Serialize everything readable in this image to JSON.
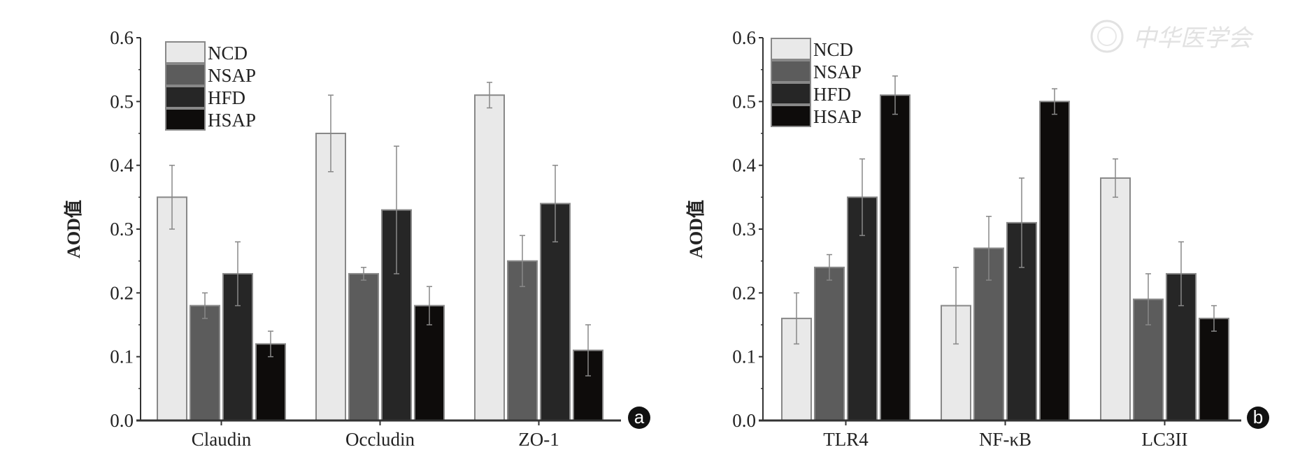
{
  "watermark": {
    "logo_text": "中华医学会"
  },
  "chart_data": [
    {
      "type": "bar",
      "panel_label": "a",
      "title": "",
      "xlabel": "",
      "ylabel": "AOD值",
      "ylim": [
        0,
        0.6
      ],
      "yticks": [
        "0.0",
        "0.1",
        "0.2",
        "0.3",
        "0.4",
        "0.5",
        "0.6"
      ],
      "grid": false,
      "legend_position": "top-left",
      "categories": [
        "Claudin",
        "Occludin",
        "ZO-1"
      ],
      "series": [
        {
          "name": "NCD",
          "color": "#e9e9e9",
          "values": [
            0.35,
            0.45,
            0.51
          ],
          "errors": [
            0.05,
            0.06,
            0.02
          ]
        },
        {
          "name": "NSAP",
          "color": "#5c5c5c",
          "values": [
            0.18,
            0.23,
            0.25
          ],
          "errors": [
            0.02,
            0.01,
            0.04
          ]
        },
        {
          "name": "HFD",
          "color": "#262626",
          "values": [
            0.23,
            0.33,
            0.34
          ],
          "errors": [
            0.05,
            0.1,
            0.06
          ]
        },
        {
          "name": "HSAP",
          "color": "#0e0c0b",
          "values": [
            0.12,
            0.18,
            0.11
          ],
          "errors": [
            0.02,
            0.03,
            0.04
          ]
        }
      ]
    },
    {
      "type": "bar",
      "panel_label": "b",
      "title": "",
      "xlabel": "",
      "ylabel": "AOD值",
      "ylim": [
        0,
        0.6
      ],
      "yticks": [
        "0.0",
        "0.1",
        "0.2",
        "0.3",
        "0.4",
        "0.5",
        "0.6"
      ],
      "grid": false,
      "legend_position": "top-left",
      "categories": [
        "TLR4",
        "NF-κB",
        "LC3II"
      ],
      "series": [
        {
          "name": "NCD",
          "color": "#e9e9e9",
          "values": [
            0.16,
            0.18,
            0.38
          ],
          "errors": [
            0.04,
            0.06,
            0.03
          ]
        },
        {
          "name": "NSAP",
          "color": "#5c5c5c",
          "values": [
            0.24,
            0.27,
            0.19
          ],
          "errors": [
            0.02,
            0.05,
            0.04
          ]
        },
        {
          "name": "HFD",
          "color": "#262626",
          "values": [
            0.35,
            0.31,
            0.23
          ],
          "errors": [
            0.06,
            0.07,
            0.05
          ]
        },
        {
          "name": "HSAP",
          "color": "#0e0c0b",
          "values": [
            0.51,
            0.5,
            0.16
          ],
          "errors": [
            0.03,
            0.02,
            0.02
          ]
        }
      ]
    }
  ]
}
